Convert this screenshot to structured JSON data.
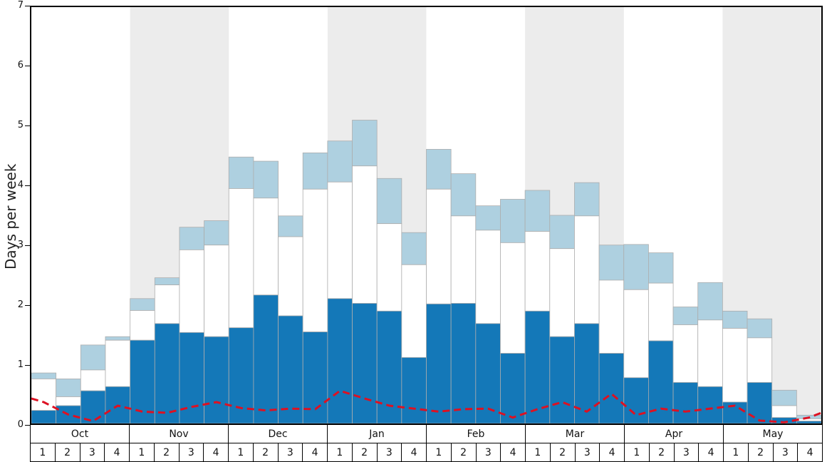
{
  "chart_data": {
    "type": "bar",
    "title": "",
    "ylabel": "Days per week",
    "ylim": [
      0,
      7
    ],
    "yticks": [
      0,
      1,
      2,
      3,
      4,
      5,
      6,
      7
    ],
    "grid": false,
    "legend": "none",
    "months": [
      "Oct",
      "Nov",
      "Dec",
      "Jan",
      "Feb",
      "Mar",
      "Apr",
      "May"
    ],
    "week_labels": [
      "1",
      "2",
      "3",
      "4"
    ],
    "stacking": "values are cumulative tops in days-per-week, read bottom segment (dark blue), middle (white), top (light blue)",
    "series": [
      {
        "name": "dark-blue-bars",
        "color": "#1478b8",
        "values": [
          0.22,
          0.3,
          0.55,
          0.62,
          1.4,
          1.68,
          1.53,
          1.46,
          1.61,
          2.16,
          1.81,
          1.54,
          2.1,
          2.02,
          1.89,
          1.11,
          2.01,
          2.02,
          1.68,
          1.18,
          1.89,
          1.46,
          1.68,
          1.18,
          0.77,
          1.39,
          0.69,
          0.62,
          0.36,
          0.69,
          0.1,
          0.04
        ]
      },
      {
        "name": "white-bars",
        "color": "#ffffff",
        "values": [
          0.75,
          0.45,
          0.9,
          1.4,
          1.9,
          2.33,
          2.92,
          3.0,
          3.95,
          3.79,
          3.14,
          3.94,
          4.06,
          4.33,
          3.36,
          2.67,
          3.94,
          3.49,
          3.25,
          3.04,
          3.23,
          2.94,
          3.49,
          2.41,
          2.25,
          2.36,
          1.66,
          1.74,
          1.6,
          1.44,
          0.3,
          0.08
        ]
      },
      {
        "name": "light-blue-bars",
        "color": "#aed0e0",
        "values": [
          0.85,
          0.75,
          1.32,
          1.46,
          2.1,
          2.45,
          3.3,
          3.41,
          4.48,
          4.41,
          3.49,
          4.55,
          4.75,
          5.1,
          4.12,
          3.21,
          4.61,
          4.2,
          3.66,
          3.77,
          3.92,
          3.5,
          4.05,
          3.0,
          3.01,
          2.87,
          1.96,
          2.37,
          1.89,
          1.76,
          0.56,
          0.14
        ]
      }
    ],
    "line": {
      "name": "red-dashed-line",
      "color": "#dd1122",
      "style": "dashed",
      "edge_left": 0.42,
      "edge_right": 0.18,
      "values": [
        0.36,
        0.15,
        0.04,
        0.3,
        0.2,
        0.18,
        0.28,
        0.36,
        0.26,
        0.22,
        0.25,
        0.24,
        0.55,
        0.42,
        0.3,
        0.25,
        0.2,
        0.24,
        0.25,
        0.1,
        0.24,
        0.36,
        0.2,
        0.5,
        0.14,
        0.25,
        0.2,
        0.25,
        0.3,
        0.05,
        0.02,
        0.1
      ]
    },
    "colors": {
      "band": "#ececec",
      "plot_background": "#ffffff",
      "bar_border": "#adadad",
      "axis_border": "#000000"
    }
  }
}
